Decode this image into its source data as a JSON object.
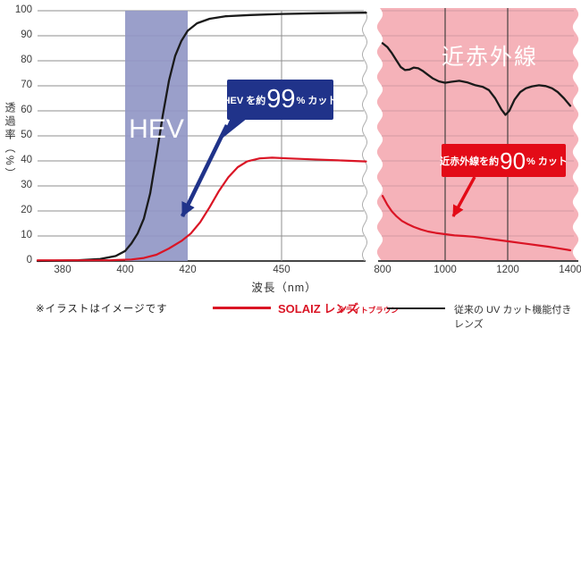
{
  "note": "※イラストはイメージです",
  "legend": {
    "solaiz_label": "SOLAIZ レンズ",
    "solaiz_sub": "※ライトブラウン",
    "conventional_label": "従来の UV カット機能付きレンズ"
  },
  "callouts": {
    "hev": {
      "prefix": "HEV を約",
      "value": "99",
      "suffix": "% カット"
    },
    "nir": {
      "prefix": "近赤外線を約",
      "value": "90",
      "suffix": "% カット"
    }
  },
  "colors": {
    "solaiz_line": "#da1525",
    "conventional_line": "#1a1a1a",
    "hev_band": "#9197c5",
    "nir_panel": "#f5b2b9",
    "nir_grid": "#d39ba2",
    "nir_vgrid": "#464040",
    "left_grid": "#8f8f8f",
    "axis": "#2b2b2b",
    "hev_callout_bg": "#20338a",
    "nir_callout_bg": "#e30b17"
  },
  "chart_data": {
    "type": "line",
    "title": "",
    "ylabel": "透過率（%）",
    "xlabel": "波長（nm）",
    "ylim": [
      0,
      100
    ],
    "y_ticks": [
      100,
      90,
      80,
      70,
      60,
      50,
      40,
      30,
      20,
      10,
      0
    ],
    "grid": true,
    "legend_position": "bottom",
    "panels": [
      {
        "name": "visible-light",
        "xlim": [
          372,
          477
        ],
        "x_ticks": [
          380,
          400,
          420,
          450
        ],
        "band": {
          "label": "HEV",
          "from": 400,
          "to": 420
        },
        "series": [
          {
            "name": "従来のUVカット機能付きレンズ",
            "points": [
              [
                372,
                0
              ],
              [
                385,
                0.3
              ],
              [
                392,
                0.8
              ],
              [
                397,
                2
              ],
              [
                400,
                4
              ],
              [
                402,
                7
              ],
              [
                404,
                11
              ],
              [
                406,
                17
              ],
              [
                408,
                27
              ],
              [
                410,
                42
              ],
              [
                412,
                58
              ],
              [
                414,
                72
              ],
              [
                416,
                82
              ],
              [
                418,
                88
              ],
              [
                420,
                92
              ],
              [
                423,
                95
              ],
              [
                427,
                96.8
              ],
              [
                432,
                97.8
              ],
              [
                440,
                98.3
              ],
              [
                450,
                98.7
              ],
              [
                462,
                99
              ],
              [
                477,
                99.2
              ]
            ]
          },
          {
            "name": "SOLAIZレンズ",
            "points": [
              [
                372,
                0.3
              ],
              [
                395,
                0.3
              ],
              [
                402,
                0.6
              ],
              [
                406,
                1.2
              ],
              [
                410,
                2.5
              ],
              [
                414,
                5
              ],
              [
                418,
                8
              ],
              [
                421,
                11
              ],
              [
                424,
                15.5
              ],
              [
                427,
                21.5
              ],
              [
                430,
                28
              ],
              [
                433,
                33.5
              ],
              [
                436,
                37.5
              ],
              [
                439,
                39.8
              ],
              [
                443,
                41
              ],
              [
                447,
                41.3
              ],
              [
                452,
                41
              ],
              [
                460,
                40.6
              ],
              [
                468,
                40.2
              ],
              [
                477,
                39.8
              ]
            ]
          }
        ]
      },
      {
        "name": "near-infrared",
        "label": "近赤外線",
        "xlim": [
          791,
          1423
        ],
        "x_ticks": [
          800,
          1000,
          1200,
          1400
        ],
        "series": [
          {
            "name": "従来のUVカット機能付きレンズ",
            "points": [
              [
                800,
                87
              ],
              [
                815,
                85.5
              ],
              [
                830,
                83
              ],
              [
                845,
                80
              ],
              [
                858,
                77.5
              ],
              [
                872,
                76.3
              ],
              [
                886,
                76.5
              ],
              [
                900,
                77.3
              ],
              [
                914,
                77
              ],
              [
                928,
                76
              ],
              [
                944,
                74.5
              ],
              [
                960,
                73
              ],
              [
                980,
                71.8
              ],
              [
                1000,
                71.2
              ],
              [
                1020,
                71.6
              ],
              [
                1045,
                72
              ],
              [
                1070,
                71.4
              ],
              [
                1095,
                70.3
              ],
              [
                1120,
                69.6
              ],
              [
                1140,
                68.3
              ],
              [
                1160,
                65
              ],
              [
                1180,
                60.5
              ],
              [
                1193,
                58.4
              ],
              [
                1205,
                60
              ],
              [
                1222,
                64.5
              ],
              [
                1240,
                67.5
              ],
              [
                1258,
                69
              ],
              [
                1278,
                69.8
              ],
              [
                1300,
                70.2
              ],
              [
                1322,
                69.9
              ],
              [
                1342,
                69
              ],
              [
                1360,
                67.5
              ],
              [
                1380,
                65
              ],
              [
                1400,
                62
              ]
            ]
          },
          {
            "name": "SOLAIZレンズ",
            "points": [
              [
                800,
                26
              ],
              [
                815,
                22.5
              ],
              [
                830,
                19.8
              ],
              [
                845,
                17.8
              ],
              [
                862,
                16
              ],
              [
                880,
                14.8
              ],
              [
                900,
                13.6
              ],
              [
                922,
                12.6
              ],
              [
                945,
                11.8
              ],
              [
                970,
                11.2
              ],
              [
                1000,
                10.7
              ],
              [
                1030,
                10.2
              ],
              [
                1060,
                10
              ],
              [
                1090,
                9.7
              ],
              [
                1120,
                9.2
              ],
              [
                1150,
                8.7
              ],
              [
                1180,
                8.2
              ],
              [
                1210,
                7.7
              ],
              [
                1240,
                7.2
              ],
              [
                1270,
                6.7
              ],
              [
                1300,
                6.2
              ],
              [
                1330,
                5.7
              ],
              [
                1360,
                5.1
              ],
              [
                1400,
                4.3
              ]
            ]
          }
        ]
      }
    ]
  }
}
